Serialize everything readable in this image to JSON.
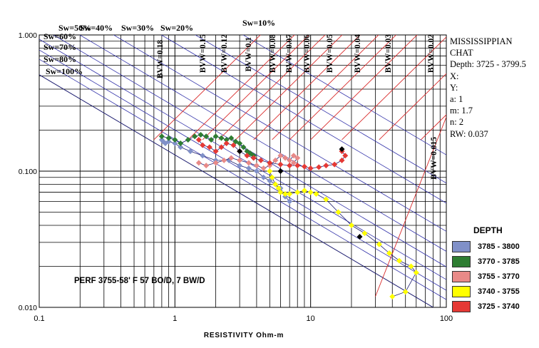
{
  "chart_data": {
    "type": "scatter",
    "title": "",
    "xlabel": "RESISTIVITY Ohm-m",
    "ylabel": "",
    "x_scale": "log",
    "y_scale": "log",
    "xlim": [
      0.1,
      100
    ],
    "ylim": [
      0.01,
      1
    ],
    "x_tick_labels": [
      "0.1",
      "1",
      "10",
      "100"
    ],
    "y_tick_labels": [
      "0.010",
      "0.100",
      "1.000"
    ],
    "sw_labels": [
      "Sw=50%",
      "Sw=40%",
      "Sw=30%",
      "Sw=20%",
      "Sw=10%",
      "Sw=60%",
      "Sw=70%",
      "Sw=80%",
      "Sw=100%"
    ],
    "bvw_labels": [
      "BVW=0.18",
      "BVW=0.15",
      "BVW=0.12",
      "BVW=0.1",
      "BVW=0.08",
      "BVW=0.07",
      "BVW=0.06",
      "BVW=0.05",
      "BVW=0.04",
      "BVW=0.03",
      "BVW=0.02",
      "BVW=0.015"
    ],
    "annotation": "PERF 3755-58' F 57 BO/D,  7 BW/D",
    "well_info": [
      "MISSISSIPPIAN",
      "CHAT",
      "Depth: 3725 - 3799.5",
      "X:",
      "Y:",
      "a: 1",
      "m: 1.7",
      "n: 2",
      "RW: 0.037"
    ],
    "legend_title": "DEPTH",
    "legend_position": "lower-right",
    "series": [
      {
        "name": "3785 - 3800",
        "color": "#8090c8",
        "x": [
          0.8,
          0.82,
          0.85,
          0.9,
          1.0,
          1.1,
          1.3,
          1.6,
          2.0,
          2.5,
          3.0,
          3.5,
          4.0,
          4.5,
          5.0,
          5.5,
          6.0,
          6.5,
          7.0
        ],
        "y": [
          0.17,
          0.165,
          0.16,
          0.165,
          0.16,
          0.15,
          0.14,
          0.13,
          0.12,
          0.12,
          0.11,
          0.105,
          0.1,
          0.09,
          0.085,
          0.08,
          0.075,
          0.065,
          0.06
        ]
      },
      {
        "name": "3770 - 3785",
        "color": "#2e7d32",
        "x": [
          0.8,
          0.9,
          1.0,
          1.1,
          1.25,
          1.4,
          1.55,
          1.7,
          1.85,
          2.0,
          2.2,
          2.4,
          2.6,
          2.8,
          3.0,
          3.2,
          3.4,
          3.6,
          3.8
        ],
        "y": [
          0.18,
          0.175,
          0.17,
          0.16,
          0.17,
          0.18,
          0.185,
          0.18,
          0.17,
          0.18,
          0.175,
          0.17,
          0.175,
          0.165,
          0.16,
          0.15,
          0.14,
          0.135,
          0.13
        ]
      },
      {
        "name": "3755 - 3770",
        "color": "#e88a88",
        "x": [
          1.5,
          1.7,
          2.0,
          2.3,
          2.6,
          3.0,
          3.5,
          4.0,
          4.5,
          5.0,
          5.5,
          6.0,
          6.5,
          7.0,
          7.5,
          8.0,
          7.5,
          7.0
        ],
        "y": [
          0.115,
          0.11,
          0.115,
          0.12,
          0.125,
          0.12,
          0.115,
          0.11,
          0.105,
          0.11,
          0.12,
          0.13,
          0.125,
          0.12,
          0.13,
          0.125,
          0.115,
          0.11
        ]
      },
      {
        "name": "3740 - 3755",
        "color": "#ffff00",
        "x": [
          5.0,
          5.2,
          5.5,
          5.8,
          6.0,
          6.5,
          7.0,
          8.0,
          9.0,
          10.0,
          11.0,
          13.0,
          16.0,
          20.0,
          25.0,
          32.0,
          38.0,
          45.0,
          55.0,
          60.0,
          50.0,
          40.0
        ],
        "y": [
          0.1,
          0.09,
          0.08,
          0.075,
          0.07,
          0.068,
          0.068,
          0.07,
          0.072,
          0.07,
          0.068,
          0.062,
          0.05,
          0.04,
          0.035,
          0.029,
          0.025,
          0.022,
          0.02,
          0.018,
          0.013,
          0.012
        ]
      },
      {
        "name": "3725 - 3740",
        "color": "#e53935",
        "x": [
          1.5,
          1.6,
          1.8,
          2.0,
          2.2,
          2.4,
          2.7,
          3.0,
          3.4,
          3.8,
          4.3,
          5.0,
          6.0,
          7.0,
          8.0,
          9.0,
          10.0,
          11.5,
          13.0,
          15.0,
          17.0,
          18.0,
          17.0
        ],
        "y": [
          0.17,
          0.155,
          0.15,
          0.14,
          0.15,
          0.16,
          0.155,
          0.14,
          0.13,
          0.125,
          0.12,
          0.115,
          0.112,
          0.11,
          0.11,
          0.108,
          0.105,
          0.107,
          0.11,
          0.112,
          0.12,
          0.13,
          0.14
        ]
      }
    ],
    "highlight_points": {
      "color": "#000000",
      "x": [
        3.0,
        6.0,
        17.0,
        23.0
      ],
      "y": [
        0.14,
        0.1,
        0.145,
        0.033
      ]
    },
    "grid": true,
    "overlay_lines": {
      "sw_color": "#3333aa",
      "bvw_color": "#d92b2b"
    }
  }
}
